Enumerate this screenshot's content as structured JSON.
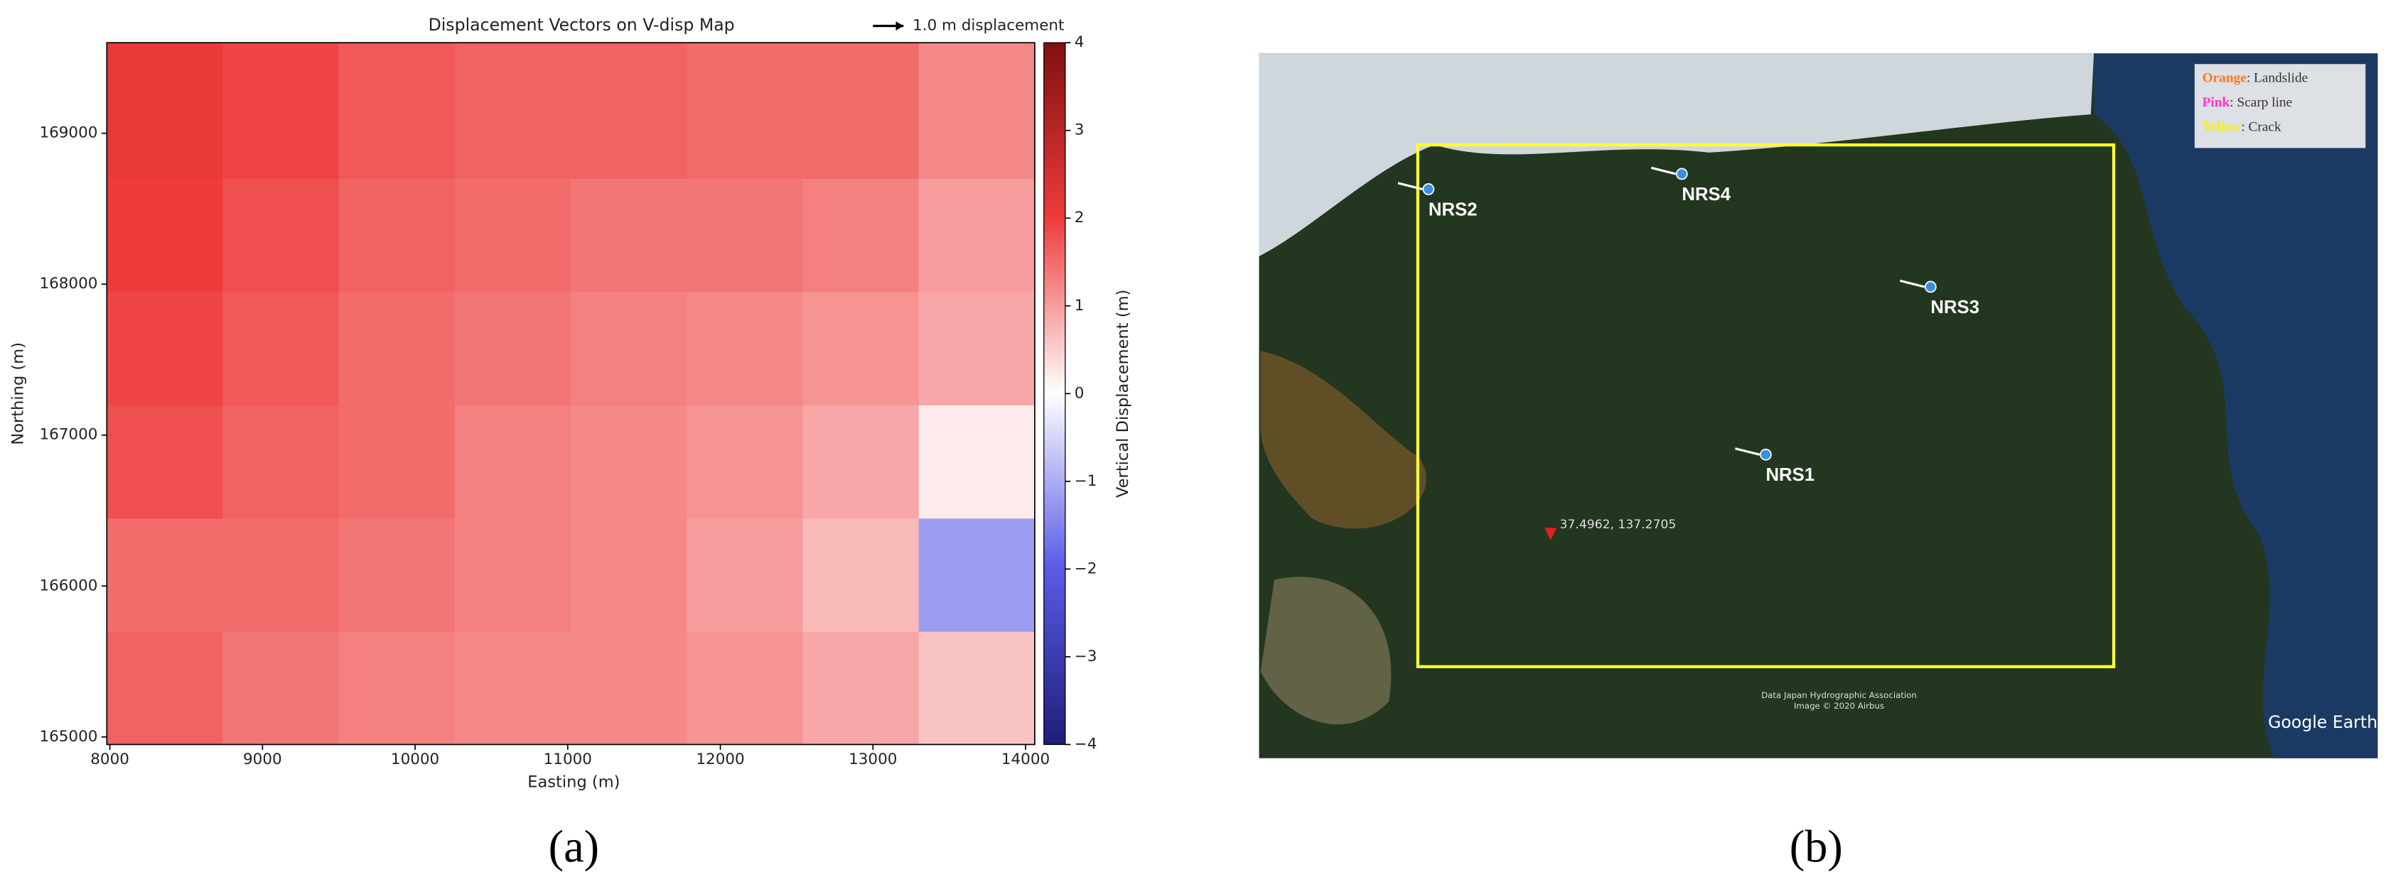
{
  "chart_data": {
    "type": "heatmap",
    "title": "Displacement Vectors on V-disp Map",
    "key_label": "1.0 m displacement",
    "xlabel": "Easting (m)",
    "ylabel": "Northing (m)",
    "colorbar_label": "Vertical Displacement (m)",
    "xlim": [
      7980,
      14060
    ],
    "ylim": [
      164950,
      169600
    ],
    "xticks": [
      8000,
      9000,
      10000,
      11000,
      12000,
      13000,
      14000
    ],
    "yticks": [
      165000,
      166000,
      167000,
      168000,
      169000
    ],
    "clim": [
      -4,
      4
    ],
    "cticks": [
      {
        "value": -4,
        "label": "−4"
      },
      {
        "value": -3,
        "label": "−3"
      },
      {
        "value": -2,
        "label": "−2"
      },
      {
        "value": -1,
        "label": "−1"
      },
      0,
      1,
      2,
      3,
      4
    ],
    "colormap": [
      "#1e1e78",
      "#5a5ae6",
      "#ffffff",
      "#ee3b3b",
      "#801010"
    ],
    "xbins": [
      7980,
      8740,
      9500,
      10260,
      11020,
      11780,
      12540,
      13300,
      14060
    ],
    "ybins": [
      164950,
      165700,
      166450,
      167200,
      167950,
      168700,
      169600
    ],
    "values": [
      [
        1.6,
        1.4,
        1.3,
        1.2,
        1.2,
        1.1,
        0.9,
        0.6
      ],
      [
        1.5,
        1.5,
        1.4,
        1.3,
        1.2,
        1.0,
        0.7,
        -1.2
      ],
      [
        1.8,
        1.6,
        1.5,
        1.3,
        1.2,
        1.1,
        0.9,
        0.2
      ],
      [
        1.9,
        1.7,
        1.5,
        1.4,
        1.3,
        1.2,
        1.1,
        0.9
      ],
      [
        2.0,
        1.8,
        1.6,
        1.5,
        1.4,
        1.4,
        1.3,
        1.0
      ],
      [
        2.1,
        1.9,
        1.7,
        1.6,
        1.6,
        1.5,
        1.5,
        1.2
      ]
    ]
  },
  "map": {
    "legend": [
      {
        "key": "Orange",
        "text": ": Landslide",
        "color": "#ff7a1a"
      },
      {
        "key": "Pink",
        "text": ": Scarp line",
        "color": "#ff33cc"
      },
      {
        "key": "Yellow",
        "text": ": Crack",
        "color": "#ffee00"
      }
    ],
    "sites": [
      {
        "label": "NRS2"
      },
      {
        "label": "NRS4"
      },
      {
        "label": "NRS3"
      },
      {
        "label": "NRS1"
      }
    ],
    "coordinates": "37.4962, 137.2705",
    "attribution": [
      "Data Japan Hydrographic Association",
      "Image © 2020 Airbus"
    ],
    "brand": "Google Earth"
  },
  "captions": [
    "(a)",
    "(b)"
  ]
}
